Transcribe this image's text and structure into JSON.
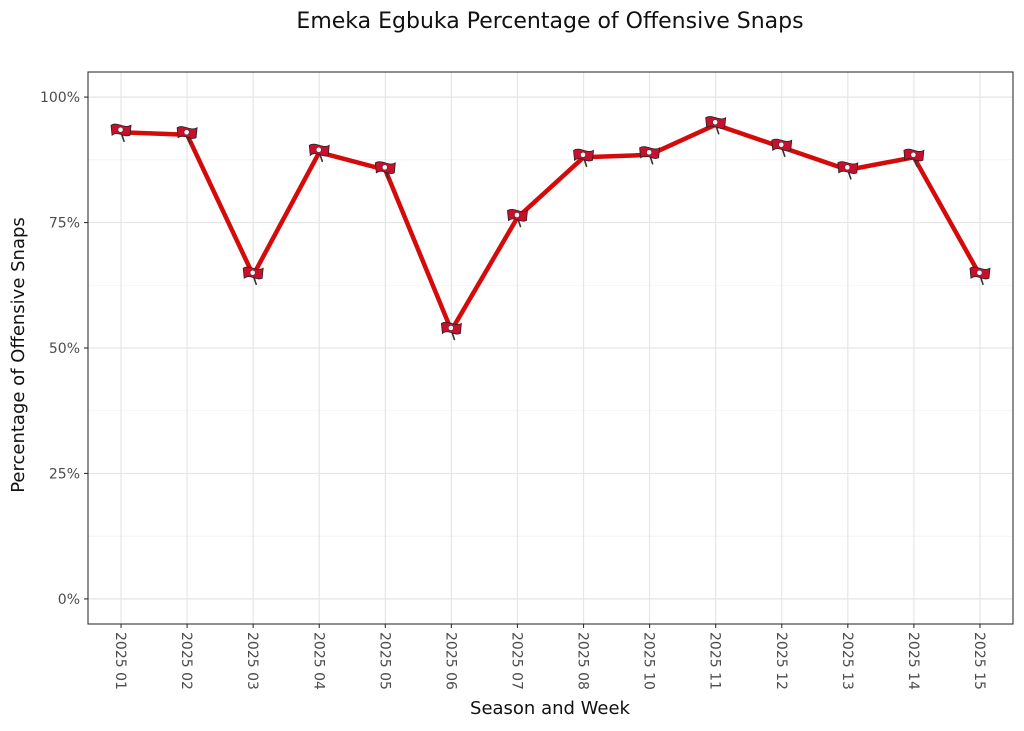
{
  "chart_data": {
    "type": "line",
    "title": "Emeka Egbuka Percentage of Offensive Snaps",
    "xlabel": "Season and Week",
    "ylabel": "Percentage of Offensive Snaps",
    "categories": [
      "2025 01",
      "2025 02",
      "2025 03",
      "2025 04",
      "2025 05",
      "2025 06",
      "2025 07",
      "2025 08",
      "2025 10",
      "2025 11",
      "2025 12",
      "2025 13",
      "2025 14",
      "2025 15"
    ],
    "series": [
      {
        "values": [
          0.93,
          0.925,
          0.645,
          0.89,
          0.855,
          0.535,
          0.76,
          0.88,
          0.885,
          0.945,
          0.9,
          0.855,
          0.88,
          0.645
        ],
        "color": "#d50a0a",
        "marker": "buccaneers-flag-logo"
      }
    ],
    "ylim": [
      -0.05,
      1.05
    ],
    "yticks": [
      0,
      0.25,
      0.5,
      0.75,
      1.0
    ],
    "ytick_labels": [
      "0%",
      "25%",
      "50%",
      "75%",
      "100%"
    ],
    "grid": true,
    "legend": "none"
  }
}
